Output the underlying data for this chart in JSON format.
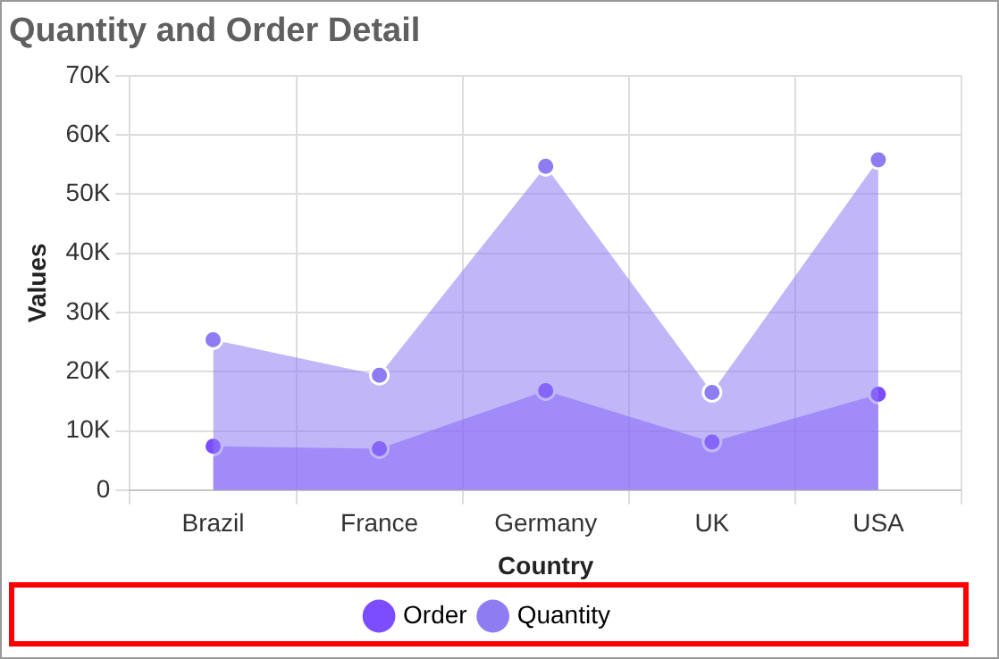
{
  "chart_data": {
    "type": "area",
    "title": "Quantity and Order Detail",
    "xlabel": "Country",
    "ylabel": "Values",
    "categories": [
      "Brazil",
      "France",
      "Germany",
      "UK",
      "USA"
    ],
    "series": [
      {
        "name": "Order",
        "color": "#7c4dff",
        "values": [
          7400,
          7000,
          16800,
          8100,
          16200
        ]
      },
      {
        "name": "Quantity",
        "color": "#8e7cf3",
        "values": [
          25400,
          19400,
          54700,
          16500,
          55800
        ]
      }
    ],
    "ylim": [
      0,
      70000
    ],
    "yticks": [
      {
        "value": 0,
        "label": "0"
      },
      {
        "value": 10000,
        "label": "10K"
      },
      {
        "value": 20000,
        "label": "20K"
      },
      {
        "value": 30000,
        "label": "30K"
      },
      {
        "value": 40000,
        "label": "40K"
      },
      {
        "value": 50000,
        "label": "50K"
      },
      {
        "value": 60000,
        "label": "60K"
      },
      {
        "value": 70000,
        "label": "70K"
      }
    ],
    "grid": true,
    "legend": "bottom",
    "marker": "circle"
  }
}
